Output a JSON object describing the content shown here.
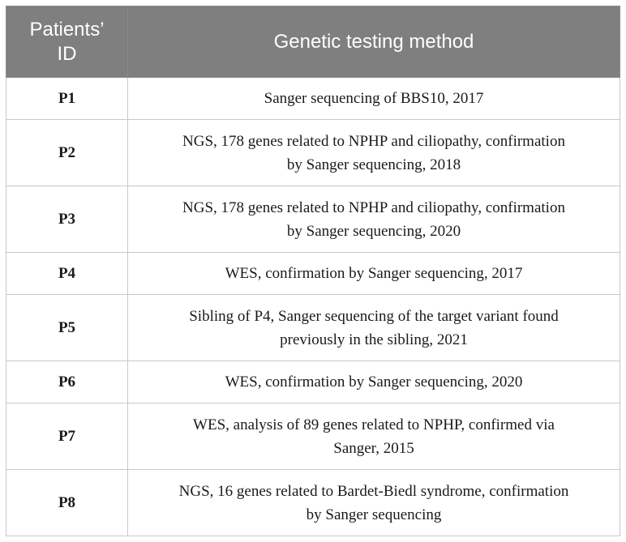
{
  "table": {
    "headers": {
      "id_line1": "Patients’",
      "id_line2": "ID",
      "method": "Genetic testing method"
    },
    "rows": [
      {
        "id": "P1",
        "method_lines": [
          "Sanger sequencing of BBS10, 2017"
        ]
      },
      {
        "id": "P2",
        "method_lines": [
          "NGS, 178 genes related to NPHP and ciliopathy, confirmation",
          "by Sanger sequencing, 2018"
        ]
      },
      {
        "id": "P3",
        "method_lines": [
          "NGS, 178 genes related to NPHP and ciliopathy, confirmation",
          "by Sanger sequencing, 2020"
        ]
      },
      {
        "id": "P4",
        "method_lines": [
          "WES, confirmation by Sanger sequencing, 2017"
        ]
      },
      {
        "id": "P5",
        "method_lines": [
          "Sibling of P4, Sanger sequencing of the target variant found",
          "previously in the sibling, 2021"
        ]
      },
      {
        "id": "P6",
        "method_lines": [
          "WES, confirmation by Sanger sequencing, 2020"
        ]
      },
      {
        "id": "P7",
        "method_lines": [
          "WES, analysis of 89 genes related to NPHP, confirmed via",
          "Sanger, 2015"
        ]
      },
      {
        "id": "P8",
        "method_lines": [
          "NGS, 16 genes related to Bardet-Biedl syndrome, confirmation",
          "by Sanger sequencing"
        ]
      }
    ]
  }
}
